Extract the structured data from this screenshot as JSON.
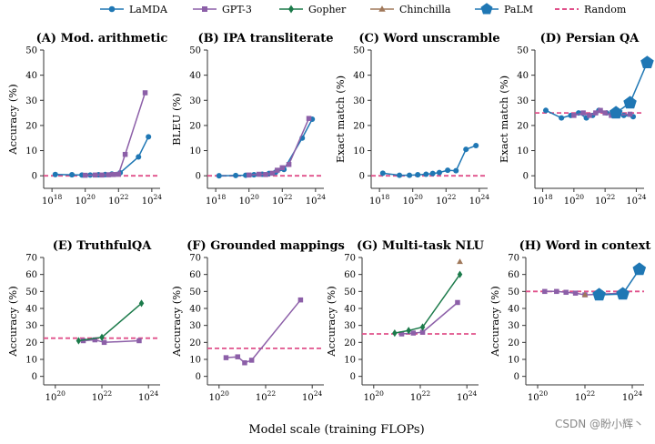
{
  "legend": [
    {
      "name": "LaMDA",
      "color": "#1f77b4",
      "marker": "circle"
    },
    {
      "name": "GPT-3",
      "color": "#8c5fa8",
      "marker": "square"
    },
    {
      "name": "Gopher",
      "color": "#1b7a4a",
      "marker": "diamond"
    },
    {
      "name": "Chinchilla",
      "color": "#a0785a",
      "marker": "triangle"
    },
    {
      "name": "PaLM",
      "color": "#1f77b4",
      "marker": "pentagon"
    },
    {
      "name": "Random",
      "color": "#e0508a",
      "marker": "dashed"
    }
  ],
  "xlabel": "Model scale (training FLOPs)",
  "watermark": "CSDN @盼小辉丶",
  "chart_data": [
    {
      "type": "line",
      "title": "(A) Mod. arithmetic",
      "ylabel": "Accuracy (%)",
      "xlim": [
        17.5,
        24.5
      ],
      "ylim": [
        -5,
        50
      ],
      "xticks": [
        18,
        20,
        22,
        24
      ],
      "yticks": [
        0,
        10,
        20,
        30,
        40,
        50
      ],
      "random": 0,
      "series": [
        {
          "name": "LaMDA",
          "x": [
            18.2,
            19.2,
            19.8,
            20.3,
            20.8,
            21.2,
            21.6,
            22.1,
            23.2,
            23.8
          ],
          "y": [
            0.5,
            0.4,
            0.3,
            0.3,
            0.4,
            0.5,
            0.7,
            1.2,
            7.5,
            15.5
          ]
        },
        {
          "name": "GPT-3",
          "x": [
            20.0,
            20.6,
            21.0,
            21.4,
            21.7,
            22.0,
            22.4,
            23.6
          ],
          "y": [
            0.2,
            0.3,
            0.3,
            0.4,
            0.5,
            0.6,
            8.5,
            33.0
          ]
        }
      ]
    },
    {
      "type": "line",
      "title": "(B) IPA transliterate",
      "ylabel": "BLEU (%)",
      "xlim": [
        17.5,
        24.5
      ],
      "ylim": [
        -5,
        50
      ],
      "xticks": [
        18,
        20,
        22,
        24
      ],
      "yticks": [
        0,
        10,
        20,
        30,
        40,
        50
      ],
      "random": 0,
      "series": [
        {
          "name": "LaMDA",
          "x": [
            18.2,
            19.2,
            19.8,
            20.3,
            20.8,
            21.2,
            21.6,
            22.1,
            23.2,
            23.8
          ],
          "y": [
            0.0,
            0.1,
            0.2,
            0.4,
            0.6,
            0.9,
            1.4,
            2.5,
            15.0,
            22.5
          ]
        },
        {
          "name": "GPT-3",
          "x": [
            20.0,
            20.6,
            21.0,
            21.4,
            21.7,
            22.0,
            22.4,
            23.6
          ],
          "y": [
            0.3,
            0.6,
            0.5,
            1.0,
            2.2,
            3.2,
            4.5,
            22.8
          ]
        }
      ]
    },
    {
      "type": "line",
      "title": "(C) Word unscramble",
      "ylabel": "Exact match (%)",
      "xlim": [
        17.5,
        24.5
      ],
      "ylim": [
        -5,
        50
      ],
      "xticks": [
        18,
        20,
        22,
        24
      ],
      "yticks": [
        0,
        10,
        20,
        30,
        40,
        50
      ],
      "random": 0,
      "series": [
        {
          "name": "LaMDA",
          "x": [
            18.2,
            19.2,
            19.8,
            20.3,
            20.8,
            21.2,
            21.6,
            22.1,
            22.6,
            23.2,
            23.8
          ],
          "y": [
            1.0,
            0.2,
            0.2,
            0.4,
            0.6,
            0.9,
            1.3,
            2.2,
            2.0,
            10.5,
            12.0
          ]
        }
      ]
    },
    {
      "type": "line",
      "title": "(D) Persian QA",
      "ylabel": "Exact match (%)",
      "xlim": [
        17.5,
        24.5
      ],
      "ylim": [
        -5,
        50
      ],
      "xticks": [
        18,
        20,
        22,
        24
      ],
      "yticks": [
        0,
        10,
        20,
        30,
        40,
        50
      ],
      "random": 25,
      "series": [
        {
          "name": "LaMDA",
          "x": [
            18.2,
            19.2,
            19.8,
            20.3,
            20.8,
            21.2,
            21.6,
            22.1,
            23.2,
            23.8
          ],
          "y": [
            26,
            23,
            24,
            25,
            23,
            24,
            26,
            25,
            24,
            23.5
          ]
        },
        {
          "name": "GPT-3",
          "x": [
            20.0,
            20.6,
            21.0,
            21.4,
            21.7,
            22.0,
            22.4,
            23.6
          ],
          "y": [
            24,
            25,
            24,
            25,
            26,
            25,
            24,
            24.5
          ]
        },
        {
          "name": "PaLM",
          "x": [
            22.7,
            23.6,
            24.7
          ],
          "y": [
            25,
            29,
            45
          ]
        }
      ]
    },
    {
      "type": "line",
      "title": "(E) TruthfulQA",
      "ylabel": "Accuracy (%)",
      "xlim": [
        19.5,
        24.5
      ],
      "ylim": [
        -5,
        70
      ],
      "xticks": [
        20,
        22,
        24
      ],
      "yticks": [
        0,
        10,
        20,
        30,
        40,
        50,
        60,
        70
      ],
      "random": 22.5,
      "series": [
        {
          "name": "GPT-3",
          "x": [
            21.2,
            21.7,
            22.1,
            23.6
          ],
          "y": [
            21,
            21.5,
            20,
            21
          ]
        },
        {
          "name": "Gopher",
          "x": [
            21.0,
            22.0,
            23.7
          ],
          "y": [
            21,
            23,
            43
          ]
        }
      ]
    },
    {
      "type": "line",
      "title": "(F) Grounded mappings",
      "ylabel": "Accuracy (%)",
      "xlim": [
        19.5,
        24.5
      ],
      "ylim": [
        -5,
        70
      ],
      "xticks": [
        20,
        22,
        24
      ],
      "yticks": [
        0,
        10,
        20,
        30,
        40,
        50,
        60,
        70
      ],
      "random": 16.5,
      "series": [
        {
          "name": "GPT-3",
          "x": [
            20.3,
            20.8,
            21.1,
            21.4,
            23.5
          ],
          "y": [
            11,
            11.5,
            8,
            9.5,
            45
          ]
        }
      ]
    },
    {
      "type": "line",
      "title": "(G) Multi-task NLU",
      "ylabel": "Accuracy (%)",
      "xlim": [
        19.5,
        24.5
      ],
      "ylim": [
        -5,
        70
      ],
      "xticks": [
        20,
        22,
        24
      ],
      "yticks": [
        0,
        10,
        20,
        30,
        40,
        50,
        60,
        70
      ],
      "random": 25,
      "series": [
        {
          "name": "GPT-3",
          "x": [
            21.2,
            21.7,
            22.1,
            23.6
          ],
          "y": [
            25,
            25.5,
            26,
            43.5
          ]
        },
        {
          "name": "Gopher",
          "x": [
            20.9,
            21.5,
            22.1,
            23.7
          ],
          "y": [
            25.5,
            27,
            29,
            60
          ]
        },
        {
          "name": "Chinchilla",
          "x": [
            23.7
          ],
          "y": [
            67.5
          ]
        }
      ]
    },
    {
      "type": "line",
      "title": "(H) Word in context",
      "ylabel": "Accuracy (%)",
      "xlim": [
        19.5,
        24.5
      ],
      "ylim": [
        -5,
        70
      ],
      "xticks": [
        20,
        22,
        24
      ],
      "yticks": [
        0,
        10,
        20,
        30,
        40,
        50,
        60,
        70
      ],
      "random": 50,
      "series": [
        {
          "name": "GPT-3",
          "x": [
            20.3,
            20.8,
            21.2,
            21.6,
            22.0,
            23.5
          ],
          "y": [
            50,
            50,
            49.5,
            49,
            48,
            49
          ]
        },
        {
          "name": "Chinchilla",
          "x": [
            22.0
          ],
          "y": [
            48
          ]
        },
        {
          "name": "PaLM",
          "x": [
            22.6,
            23.6,
            24.3
          ],
          "y": [
            48,
            48.5,
            63
          ]
        }
      ]
    }
  ]
}
